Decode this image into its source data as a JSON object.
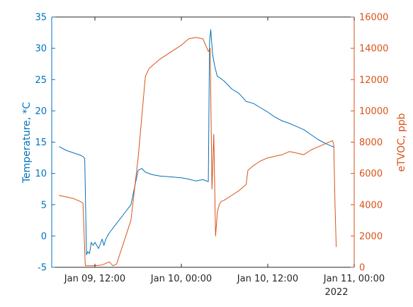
{
  "chart_data": {
    "type": "line",
    "title": "",
    "xlabel": "",
    "x_year_label": "2022",
    "x_ticks": [
      {
        "value": "2022-01-09T12:00",
        "label": "Jan 09, 12:00"
      },
      {
        "value": "2022-01-10T00:00",
        "label": "Jan 10, 00:00"
      },
      {
        "value": "2022-01-10T12:00",
        "label": "Jan 10, 12:00"
      },
      {
        "value": "2022-01-11T00:00",
        "label": "Jan 11, 00:00"
      }
    ],
    "xlim": [
      "2022-01-09T06:00",
      "2022-01-11T00:00"
    ],
    "y_left": {
      "label": "Temperature, *C",
      "color": "#0072BD",
      "lim": [
        -5,
        35
      ],
      "ticks": [
        -5,
        0,
        5,
        10,
        15,
        20,
        25,
        30,
        35
      ]
    },
    "y_right": {
      "label": "eTVOC, ppb",
      "color": "#D95319",
      "lim": [
        0,
        16000
      ],
      "ticks": [
        0,
        2000,
        4000,
        6000,
        8000,
        10000,
        12000,
        14000,
        16000
      ]
    },
    "grid": false,
    "legend": "none",
    "series": [
      {
        "axis": "left",
        "color": "#0072BD",
        "x": [
          "2022-01-09T07:00",
          "2022-01-09T08:00",
          "2022-01-09T09:00",
          "2022-01-09T10:00",
          "2022-01-09T10:20",
          "2022-01-09T10:35",
          "2022-01-09T10:50",
          "2022-01-09T11:00",
          "2022-01-09T11:15",
          "2022-01-09T11:30",
          "2022-01-09T11:45",
          "2022-01-09T12:00",
          "2022-01-09T12:30",
          "2022-01-09T13:00",
          "2022-01-09T13:15",
          "2022-01-09T13:30",
          "2022-01-09T14:00",
          "2022-01-09T15:00",
          "2022-01-09T16:00",
          "2022-01-09T17:00",
          "2022-01-09T18:00",
          "2022-01-09T18:30",
          "2022-01-09T19:00",
          "2022-01-09T20:00",
          "2022-01-09T21:00",
          "2022-01-09T22:00",
          "2022-01-09T23:00",
          "2022-01-10T00:00",
          "2022-01-10T01:00",
          "2022-01-10T02:00",
          "2022-01-10T03:00",
          "2022-01-10T03:45",
          "2022-01-10T03:55",
          "2022-01-10T04:05",
          "2022-01-10T04:20",
          "2022-01-10T04:40",
          "2022-01-10T05:00",
          "2022-01-10T05:20",
          "2022-01-10T06:00",
          "2022-01-10T07:00",
          "2022-01-10T08:00",
          "2022-01-10T09:00",
          "2022-01-10T10:00",
          "2022-01-10T11:00",
          "2022-01-10T12:00",
          "2022-01-10T13:00",
          "2022-01-10T14:00",
          "2022-01-10T15:00",
          "2022-01-10T16:00",
          "2022-01-10T17:00",
          "2022-01-10T18:00",
          "2022-01-10T19:00",
          "2022-01-10T20:00",
          "2022-01-10T21:00",
          "2022-01-10T21:15"
        ],
        "y": [
          14.3,
          13.7,
          13.3,
          12.9,
          12.7,
          12.4,
          -3.0,
          -2.5,
          -2.8,
          -1.0,
          -1.5,
          -1.0,
          -2.0,
          -0.5,
          -1.5,
          -0.5,
          0.5,
          2.0,
          3.5,
          5.0,
          10.5,
          10.8,
          10.2,
          9.8,
          9.6,
          9.5,
          9.4,
          9.3,
          9.1,
          8.8,
          9.0,
          8.7,
          31.0,
          33.0,
          29.0,
          27.0,
          25.5,
          25.3,
          24.7,
          23.5,
          22.8,
          21.5,
          21.2,
          20.5,
          19.8,
          19.0,
          18.4,
          18.0,
          17.5,
          17.0,
          16.2,
          15.4,
          14.8,
          14.3,
          14.2
        ]
      },
      {
        "axis": "right",
        "color": "#D95319",
        "x": [
          "2022-01-09T07:00",
          "2022-01-09T08:00",
          "2022-01-09T09:00",
          "2022-01-09T10:00",
          "2022-01-09T10:20",
          "2022-01-09T10:40",
          "2022-01-09T11:00",
          "2022-01-09T12:00",
          "2022-01-09T13:00",
          "2022-01-09T14:00",
          "2022-01-09T14:30",
          "2022-01-09T15:00",
          "2022-01-09T17:00",
          "2022-01-09T18:00",
          "2022-01-09T19:00",
          "2022-01-09T19:30",
          "2022-01-09T20:00",
          "2022-01-09T21:00",
          "2022-01-09T22:00",
          "2022-01-09T23:00",
          "2022-01-10T00:00",
          "2022-01-10T01:00",
          "2022-01-10T02:00",
          "2022-01-10T03:00",
          "2022-01-10T03:45",
          "2022-01-10T04:00",
          "2022-01-10T04:15",
          "2022-01-10T04:30",
          "2022-01-10T04:45",
          "2022-01-10T05:00",
          "2022-01-10T05:15",
          "2022-01-10T05:30",
          "2022-01-10T06:00",
          "2022-01-10T07:00",
          "2022-01-10T08:00",
          "2022-01-10T09:00",
          "2022-01-10T09:15",
          "2022-01-10T10:00",
          "2022-01-10T11:00",
          "2022-01-10T12:00",
          "2022-01-10T13:00",
          "2022-01-10T14:00",
          "2022-01-10T15:00",
          "2022-01-10T16:00",
          "2022-01-10T17:00",
          "2022-01-10T18:00",
          "2022-01-10T19:00",
          "2022-01-10T20:00",
          "2022-01-10T21:00",
          "2022-01-10T21:10",
          "2022-01-10T21:20",
          "2022-01-10T21:30"
        ],
        "y": [
          4600,
          4500,
          4400,
          4200,
          4100,
          100,
          100,
          100,
          150,
          350,
          100,
          200,
          3000,
          7000,
          12200,
          12700,
          12900,
          13300,
          13600,
          13900,
          14200,
          14600,
          14700,
          14600,
          13800,
          14000,
          5000,
          8500,
          2000,
          3500,
          4000,
          4200,
          4300,
          4600,
          4900,
          5300,
          6200,
          6500,
          6800,
          7000,
          7100,
          7200,
          7400,
          7300,
          7200,
          7500,
          7700,
          7900,
          8100,
          7800,
          4000,
          1300
        ]
      }
    ]
  }
}
